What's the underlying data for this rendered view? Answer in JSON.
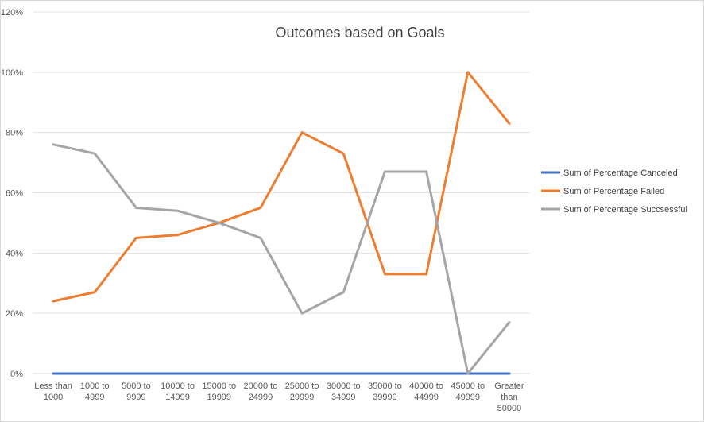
{
  "chart_data": {
    "type": "line",
    "title": "Outcomes based on Goals",
    "xlabel": "",
    "ylabel": "",
    "ylim": [
      0,
      120
    ],
    "y_ticks": [
      0,
      20,
      40,
      60,
      80,
      100,
      120
    ],
    "y_tick_labels": [
      "0%",
      "20%",
      "40%",
      "60%",
      "80%",
      "100%",
      "120%"
    ],
    "grid": true,
    "legend_position": "right",
    "categories": [
      [
        "Less than",
        "1000"
      ],
      [
        "1000 to",
        "4999"
      ],
      [
        "5000 to",
        "9999"
      ],
      [
        "10000 to",
        "14999"
      ],
      [
        "15000 to",
        "19999"
      ],
      [
        "20000 to",
        "24999"
      ],
      [
        "25000 to",
        "29999"
      ],
      [
        "30000 to",
        "34999"
      ],
      [
        "35000 to",
        "39999"
      ],
      [
        "40000 to",
        "44999"
      ],
      [
        "45000 to",
        "49999"
      ],
      [
        "Greater",
        "than",
        "50000"
      ]
    ],
    "series": [
      {
        "name": "Sum of Percentage Canceled",
        "color": "#4472c4",
        "values": [
          0,
          0,
          0,
          0,
          0,
          0,
          0,
          0,
          0,
          0,
          0,
          0
        ]
      },
      {
        "name": "Sum of Percentage Failed",
        "color": "#ed7d31",
        "values": [
          24,
          27,
          45,
          46,
          50,
          55,
          80,
          73,
          33,
          33,
          100,
          83
        ]
      },
      {
        "name": "Sum of Percentage Succsessful",
        "color": "#a5a5a5",
        "values": [
          76,
          73,
          55,
          54,
          50,
          45,
          20,
          27,
          67,
          67,
          0,
          17
        ]
      }
    ]
  }
}
